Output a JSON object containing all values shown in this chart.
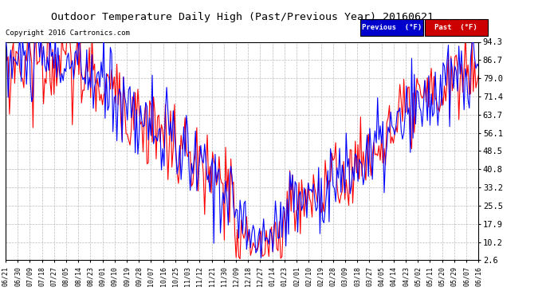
{
  "title": "Outdoor Temperature Daily High (Past/Previous Year) 20160621",
  "copyright": "Copyright 2016 Cartronics.com",
  "legend_labels": [
    "Previous  (°F)",
    "Past  (°F)"
  ],
  "legend_bg_colors": [
    "#0000cc",
    "#cc0000"
  ],
  "ylabel_values": [
    2.6,
    10.2,
    17.9,
    25.5,
    33.2,
    40.8,
    48.5,
    56.1,
    63.7,
    71.4,
    79.0,
    86.7,
    94.3
  ],
  "ylim": [
    2.6,
    94.3
  ],
  "bg_color": "#ffffff",
  "grid_color": "#bbbbbb",
  "line_color_previous": "#0000ff",
  "line_color_past": "#ff0000",
  "x_tick_labels": [
    "06/21",
    "06/30",
    "07/09",
    "07/18",
    "07/27",
    "08/05",
    "08/14",
    "08/23",
    "09/01",
    "09/10",
    "09/19",
    "09/28",
    "10/07",
    "10/16",
    "10/25",
    "11/03",
    "11/12",
    "11/21",
    "11/30",
    "12/09",
    "12/18",
    "12/27",
    "01/14",
    "01/23",
    "02/01",
    "02/10",
    "02/19",
    "02/28",
    "03/09",
    "03/18",
    "03/27",
    "04/05",
    "04/14",
    "04/23",
    "05/02",
    "05/11",
    "05/20",
    "05/29",
    "06/07",
    "06/16"
  ],
  "figsize": [
    6.9,
    3.75
  ],
  "dpi": 100
}
